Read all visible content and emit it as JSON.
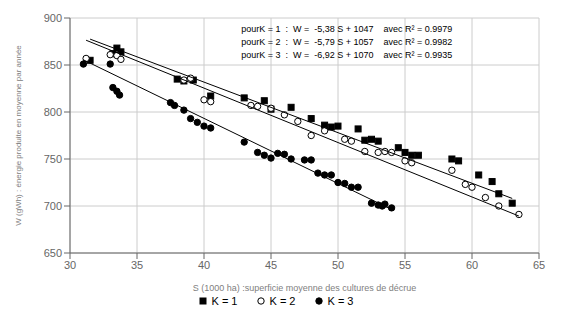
{
  "chart_data": {
    "type": "scatter",
    "xlabel": "S (1000 ha) :superficie moyenne des cultures de décrue",
    "ylabel": "W (gWh) : énergie produite en moyenne par année",
    "xlim": [
      30,
      65
    ],
    "ylim": [
      650,
      900
    ],
    "xticks": [
      30,
      35,
      40,
      45,
      50,
      55,
      60,
      65
    ],
    "yticks": [
      650,
      700,
      750,
      800,
      850,
      900
    ],
    "grid": true,
    "legend": "bottom",
    "annotations": [
      "pourK = 1  :  W =  -5,38 S + 1047    avec R² = 0.9979",
      "pourK = 2  :  W =  -5,79 S + 1057    avec R² = 0.9982",
      "pourK = 3  :  W =  -6,92 S + 1070    avec R² = 0.9935"
    ],
    "series": [
      {
        "name": "K = 1",
        "type": "scatter",
        "marker": "square",
        "color": "#000000",
        "x": [
          31.5,
          33.2,
          33.5,
          33.8,
          38.0,
          38.5,
          39.2,
          40.5,
          43.0,
          44.5,
          45.0,
          46.5,
          48.0,
          49.0,
          49.5,
          50.0,
          51.5,
          52.0,
          52.5,
          53.0,
          54.5,
          55.0,
          55.5,
          56.0,
          58.5,
          59.0,
          60.5,
          61.5,
          62.0,
          63.0
        ],
        "values": [
          855,
          862,
          868,
          864,
          835,
          833,
          834,
          817,
          815,
          812,
          803,
          805,
          793,
          786,
          784,
          785,
          782,
          770,
          771,
          769,
          762,
          757,
          754,
          754,
          750,
          748,
          733,
          726,
          713,
          703
        ]
      },
      {
        "name": "K = 2",
        "type": "scatter",
        "marker": "open_circle",
        "color": "#000000",
        "x": [
          31.2,
          33.0,
          33.5,
          33.8,
          38.5,
          39.0,
          40.0,
          40.5,
          43.5,
          44.0,
          45.0,
          46.0,
          47.0,
          48.0,
          49.0,
          50.5,
          51.0,
          52.0,
          53.0,
          53.5,
          54.0,
          55.0,
          55.5,
          58.5,
          59.5,
          60.0,
          61.0,
          62.0,
          63.5
        ],
        "values": [
          857,
          861,
          860,
          856,
          834,
          836,
          813,
          811,
          807,
          806,
          804,
          797,
          790,
          775,
          780,
          771,
          769,
          758,
          757,
          758,
          757,
          748,
          746,
          738,
          723,
          720,
          709,
          700,
          691
        ]
      },
      {
        "name": "K = 3",
        "type": "scatter",
        "marker": "circle",
        "color": "#000000",
        "x": [
          31.0,
          33.0,
          33.2,
          33.5,
          33.7,
          37.5,
          37.8,
          38.5,
          39.0,
          39.5,
          40.0,
          40.5,
          43.0,
          44.0,
          44.5,
          45.0,
          45.5,
          46.0,
          46.5,
          47.5,
          48.0,
          48.5,
          49.0,
          49.5,
          50.0,
          50.5,
          51.0,
          51.5,
          52.5,
          53.0,
          53.3,
          53.5,
          54.0
        ],
        "values": [
          851,
          851,
          826,
          822,
          818,
          810,
          807,
          802,
          793,
          789,
          785,
          783,
          768,
          757,
          754,
          751,
          756,
          755,
          750,
          749,
          749,
          735,
          733,
          733,
          725,
          724,
          720,
          720,
          703,
          701,
          700,
          702,
          698
        ]
      },
      {
        "type": "line",
        "color": "#000000",
        "x": [
          31.5,
          63.0
        ],
        "values": [
          877.53,
          708.06
        ]
      },
      {
        "type": "line",
        "color": "#000000",
        "x": [
          31.2,
          63.5
        ],
        "values": [
          876.352,
          689.335
        ]
      },
      {
        "type": "line",
        "color": "#000000",
        "x": [
          31.0,
          54.0
        ],
        "values": [
          855.48,
          696.32
        ]
      }
    ]
  }
}
